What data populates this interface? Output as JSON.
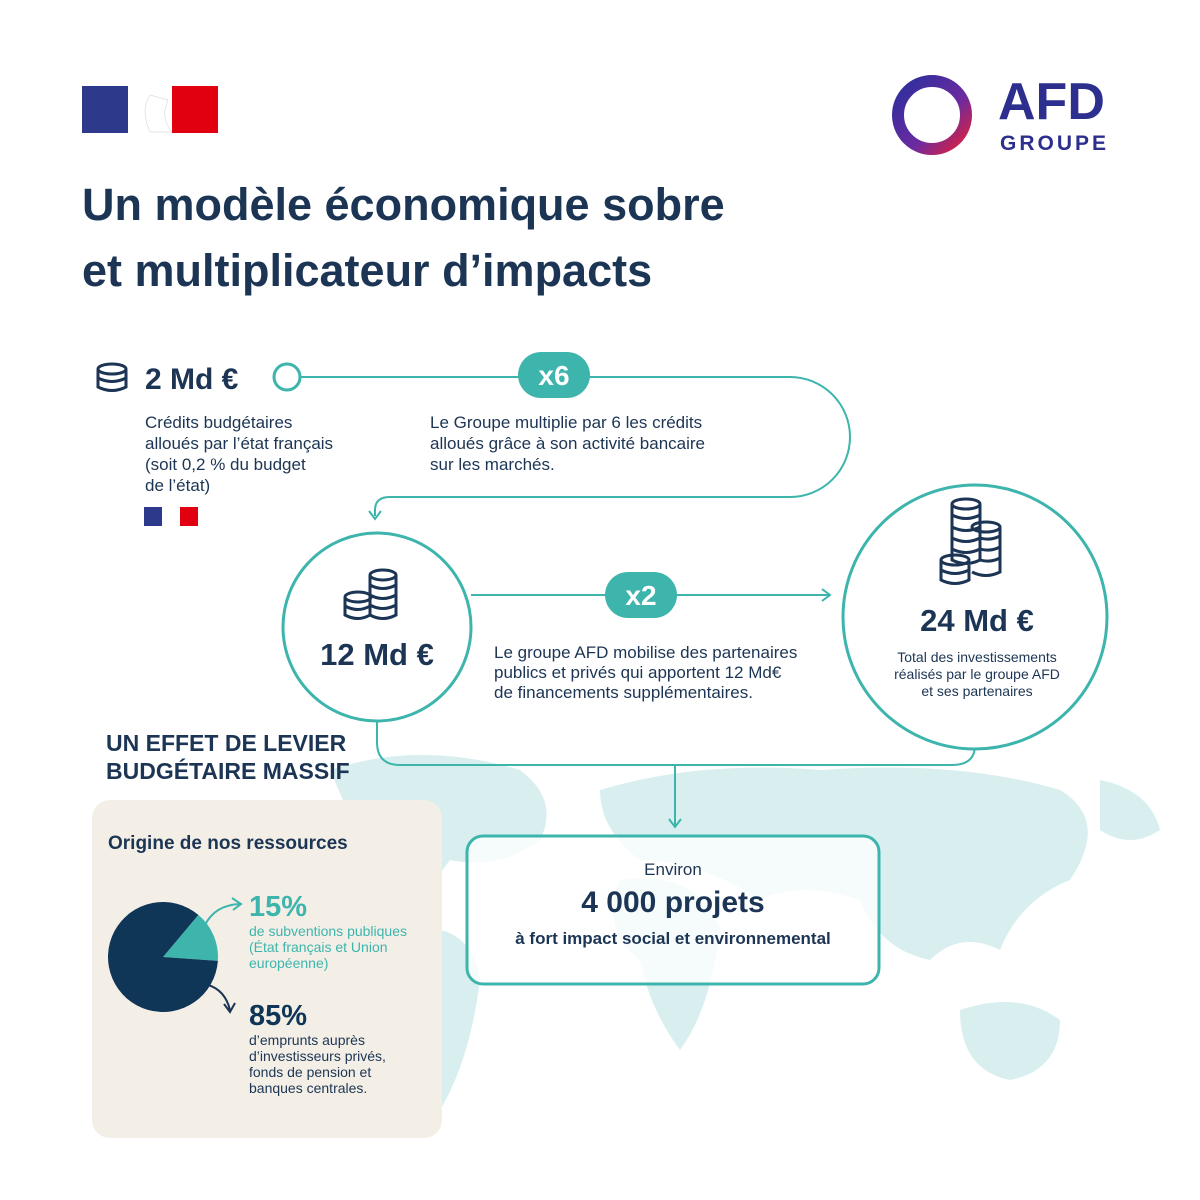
{
  "logo": {
    "name": "AFD",
    "subtitle": "GROUPE"
  },
  "title": [
    "Un modèle économique sobre",
    "et multiplicateur d’impacts"
  ],
  "budget": {
    "amount": "2 Md €",
    "description": [
      "Crédits budgétaires",
      "alloués par l’état français",
      "(soit 0,2 % du budget",
      "de l’état)"
    ]
  },
  "multiplier_1": {
    "label": "x6",
    "description": [
      "Le Groupe multiplie par 6 les crédits",
      "alloués grâce à son activité bancaire",
      "sur les marchés."
    ]
  },
  "group_amount": {
    "amount": "12 Md €"
  },
  "multiplier_2": {
    "label": "x2",
    "description": [
      "Le groupe AFD mobilise des partenaires",
      "publics et privés qui apportent 12 Md€",
      "de financements supplémentaires."
    ]
  },
  "total": {
    "amount": "24 Md €",
    "description": [
      "Total des investissements",
      "réalisés par le groupe AFD",
      "et ses partenaires"
    ]
  },
  "leverage": [
    "UN EFFET DE LEVIER",
    "BUDGÉTAIRE MASSIF"
  ],
  "resources": {
    "title": "Origine de nos ressources",
    "items": [
      {
        "share": {
          "value": 15,
          "label": "15%"
        },
        "color": "#3db5ad",
        "description": [
          "de subventions publiques",
          "(État français et Union",
          "européenne)"
        ]
      },
      {
        "share": {
          "value": 85,
          "label": "85%"
        },
        "color": "#0f3557",
        "description": [
          "d’emprunts auprès",
          "d’investisseurs privés,",
          "fonds de pension et",
          "banques centrales."
        ]
      }
    ]
  },
  "projects": {
    "intro": "Environ",
    "count": "4 000 projets",
    "description": "à fort impact social et environnemental"
  }
}
